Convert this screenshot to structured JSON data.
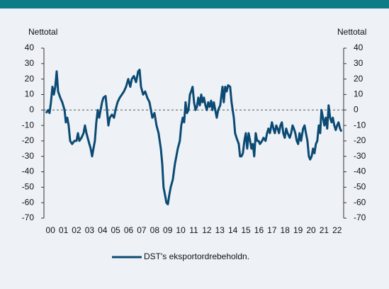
{
  "chart_data": {
    "type": "line",
    "y_label": "Nettotal",
    "y2_label": "Nettotal",
    "categories": [
      "00",
      "01",
      "02",
      "03",
      "04",
      "05",
      "06",
      "07",
      "08",
      "09",
      "10",
      "11",
      "12",
      "13",
      "14",
      "15",
      "16",
      "17",
      "18",
      "19",
      "20",
      "21",
      "22"
    ],
    "xlim": [
      2000,
      2023
    ],
    "ylim": [
      -70,
      40
    ],
    "yticks": [
      -70,
      -60,
      -50,
      -40,
      -30,
      -20,
      -10,
      0,
      10,
      20,
      30,
      40
    ],
    "y2lim": [
      -70,
      40
    ],
    "y2ticks": [
      -70,
      -60,
      -50,
      -40,
      -30,
      -20,
      -10,
      0,
      10,
      20,
      30,
      40
    ],
    "zero_line": true,
    "x": [
      2000.16,
      2000.33,
      2000.43,
      2000.54,
      2000.65,
      2000.76,
      2000.87,
      2000.98,
      2001.09,
      2001.25,
      2001.41,
      2001.58,
      2001.68,
      2001.79,
      2001.9,
      2002.01,
      2002.17,
      2002.34,
      2002.5,
      2002.61,
      2002.72,
      2002.88,
      2003.04,
      2003.15,
      2003.26,
      2003.42,
      2003.59,
      2003.7,
      2003.8,
      2003.91,
      2004.02,
      2004.13,
      2004.24,
      2004.35,
      2004.46,
      2004.57,
      2004.73,
      2004.84,
      2004.95,
      2005.05,
      2005.22,
      2005.38,
      2005.49,
      2005.65,
      2005.82,
      2005.98,
      2006.14,
      2006.3,
      2006.47,
      2006.63,
      2006.74,
      2006.9,
      2007.07,
      2007.23,
      2007.34,
      2007.45,
      2007.61,
      2007.77,
      2007.93,
      2008.1,
      2008.21,
      2008.32,
      2008.48,
      2008.64,
      2008.8,
      2008.97,
      2009.08,
      2009.18,
      2009.29,
      2009.4,
      2009.51,
      2009.62,
      2009.73,
      2009.89,
      2010.05,
      2010.16,
      2010.27,
      2010.43,
      2010.54,
      2010.65,
      2010.76,
      2010.87,
      2010.98,
      2011.09,
      2011.2,
      2011.3,
      2011.41,
      2011.52,
      2011.63,
      2011.74,
      2011.85,
      2011.96,
      2012.07,
      2012.17,
      2012.28,
      2012.39,
      2012.5,
      2012.61,
      2012.72,
      2012.83,
      2012.93,
      2013.04,
      2013.15,
      2013.26,
      2013.37,
      2013.53,
      2013.7,
      2013.8,
      2013.91,
      2014.02,
      2014.13,
      2014.29,
      2014.4,
      2014.57,
      2014.67,
      2014.78,
      2014.95,
      2015.05,
      2015.16,
      2015.27,
      2015.38,
      2015.49,
      2015.6,
      2015.71,
      2015.82,
      2015.92,
      2016.03,
      2016.14,
      2016.25,
      2016.36,
      2016.47,
      2016.58,
      2016.74,
      2016.85,
      2017.01,
      2017.12,
      2017.23,
      2017.34,
      2017.5,
      2017.61,
      2017.72,
      2017.83,
      2017.93,
      2018.04,
      2018.15,
      2018.26,
      2018.37,
      2018.48,
      2018.59,
      2018.7,
      2018.86,
      2018.97,
      2019.08,
      2019.18,
      2019.29,
      2019.4,
      2019.51,
      2019.62,
      2019.73,
      2019.89,
      2020.0,
      2020.11,
      2020.22,
      2020.33,
      2020.43,
      2020.54,
      2020.65,
      2020.76,
      2020.87,
      2020.98,
      2021.09,
      2021.2,
      2021.3,
      2021.41,
      2021.52,
      2021.63,
      2021.74,
      2021.85,
      2021.96,
      2022.07,
      2022.17,
      2022.28,
      2022.39,
      2022.5,
      2022.61,
      2022.72,
      2022.83
    ],
    "series": [
      {
        "name": "DST's eksportordrebeholdn.",
        "color": "#0b4a73",
        "values": [
          -2,
          0,
          -2,
          5,
          15,
          10,
          15,
          25,
          12,
          8,
          5,
          0,
          -8,
          -5,
          -10,
          -20,
          -22,
          -20,
          -20,
          -15,
          -20,
          -18,
          -15,
          -10,
          -15,
          -20,
          -25,
          -30,
          -25,
          -20,
          -8,
          0,
          -5,
          0,
          5,
          8,
          9,
          0,
          -10,
          -5,
          -3,
          -5,
          0,
          5,
          8,
          10,
          12,
          15,
          20,
          15,
          20,
          22,
          18,
          25,
          26,
          15,
          10,
          12,
          8,
          5,
          0,
          -5,
          -2,
          -10,
          -15,
          -25,
          -35,
          -50,
          -55,
          -60,
          -61,
          -55,
          -50,
          -45,
          -35,
          -30,
          -25,
          -20,
          -10,
          -5,
          -8,
          5,
          -2,
          0,
          10,
          12,
          15,
          5,
          0,
          2,
          8,
          3,
          10,
          5,
          8,
          3,
          0,
          5,
          2,
          6,
          0,
          5,
          0,
          -5,
          0,
          3,
          15,
          5,
          15,
          12,
          16,
          15,
          5,
          -5,
          -15,
          -18,
          -22,
          -30,
          -30,
          -28,
          -20,
          -15,
          -25,
          -15,
          -20,
          -25,
          -22,
          -30,
          -15,
          -20,
          -20,
          -22,
          -20,
          -18,
          -20,
          -15,
          -12,
          -15,
          -8,
          -12,
          -15,
          -10,
          -12,
          -15,
          -10,
          -8,
          -15,
          -18,
          -12,
          -15,
          -18,
          -15,
          -10,
          -12,
          -15,
          -20,
          -22,
          -15,
          -20,
          -12,
          -10,
          -15,
          -20,
          -30,
          -32,
          -30,
          -25,
          -28,
          -22,
          -20,
          -10,
          -15,
          0,
          -5,
          -10,
          -5,
          -12,
          3,
          -5,
          -8,
          -5,
          -10,
          -13,
          -10,
          -8,
          -12,
          -14
        ]
      }
    ]
  }
}
